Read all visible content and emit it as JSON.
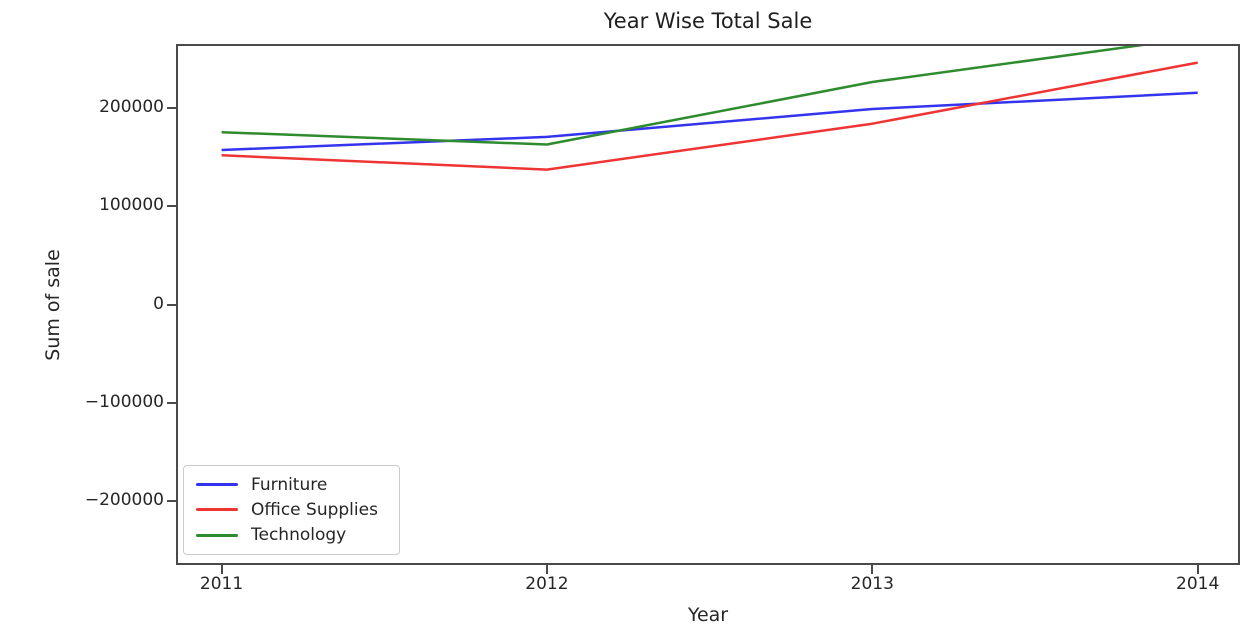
{
  "chart_data": {
    "type": "line",
    "title": "Year Wise Total Sale",
    "xlabel": "Year",
    "ylabel": "Sum of sale",
    "x": [
      2011,
      2012,
      2013,
      2014
    ],
    "xlim": [
      2010.86,
      2014.13
    ],
    "ylim": [
      -265000,
      265000
    ],
    "grid": false,
    "x_ticks": [
      {
        "value": 2011,
        "label": "2011"
      },
      {
        "value": 2012,
        "label": "2012"
      },
      {
        "value": 2013,
        "label": "2013"
      },
      {
        "value": 2014,
        "label": "2014"
      }
    ],
    "y_ticks": [
      {
        "value": 200000,
        "label": "200000"
      },
      {
        "value": 100000,
        "label": "100000"
      },
      {
        "value": 0,
        "label": "0"
      },
      {
        "value": -100000,
        "label": "−100000"
      },
      {
        "value": -200000,
        "label": "−200000"
      }
    ],
    "series": [
      {
        "name": "Furniture",
        "color": "#3434ef",
        "values": [
          157193,
          170518,
          198901,
          215387
        ]
      },
      {
        "name": "Office Supplies",
        "color": "#ef3434",
        "values": [
          151776,
          137233,
          183940,
          246097
        ]
      },
      {
        "name": "Technology",
        "color": "#2e8b2e",
        "values": [
          175278,
          162781,
          226364,
          271731
        ]
      }
    ],
    "legend": {
      "position": "lower left",
      "entries": [
        "Furniture",
        "Office Supplies",
        "Technology"
      ]
    },
    "colors": {
      "background": "#ffffff",
      "spine": "#4a4a4a",
      "text": "#262626",
      "legend_border": "#cccccc"
    }
  }
}
